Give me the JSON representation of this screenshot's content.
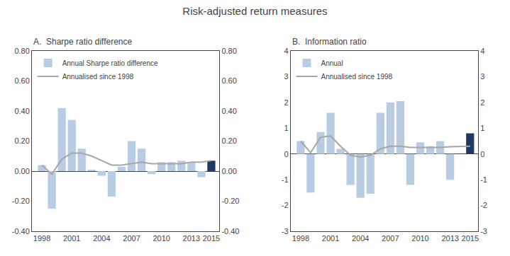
{
  "title": "Risk-adjusted return measures",
  "chart_data": [
    {
      "type": "bar",
      "title": "A.  Sharpe ratio difference",
      "x": [
        1998,
        1999,
        2000,
        2001,
        2002,
        2003,
        2004,
        2005,
        2006,
        2007,
        2008,
        2009,
        2010,
        2011,
        2012,
        2013,
        2014,
        2015
      ],
      "xlim": [
        1997.0,
        2015.8
      ],
      "xticks": [
        1998,
        2001,
        2004,
        2007,
        2010,
        2013,
        2015
      ],
      "ylim": [
        -0.4,
        0.8
      ],
      "yticks": [
        {
          "value": -0.4,
          "label": "-0.40"
        },
        {
          "value": -0.2,
          "label": "-0.20"
        },
        {
          "value": 0.0,
          "label": "0.00"
        },
        {
          "value": 0.2,
          "label": "0.20"
        },
        {
          "value": 0.4,
          "label": "0.40"
        },
        {
          "value": 0.6,
          "label": "0.60"
        },
        {
          "value": 0.8,
          "label": "0.80"
        }
      ],
      "y2lim": [
        -0.4,
        0.8
      ],
      "y2ticks": [
        {
          "value": -0.4,
          "label": "-0.40"
        },
        {
          "value": -0.2,
          "label": "-0.20"
        },
        {
          "value": 0.0,
          "label": "0.00"
        },
        {
          "value": 0.2,
          "label": "0.20"
        },
        {
          "value": 0.4,
          "label": "0.40"
        },
        {
          "value": 0.6,
          "label": "0.60"
        },
        {
          "value": 0.8,
          "label": "0.80"
        }
      ],
      "grid": false,
      "legend": "upper left",
      "series": [
        {
          "name": "Annual Sharpe ratio difference",
          "type": "bar",
          "values": [
            0.04,
            -0.25,
            0.42,
            0.34,
            0.15,
            0.01,
            -0.03,
            -0.17,
            0.03,
            0.2,
            0.15,
            -0.02,
            0.06,
            0.06,
            0.07,
            0.06,
            -0.04,
            0.07
          ],
          "colors": [
            "#b8cce4",
            "#b8cce4",
            "#b8cce4",
            "#b8cce4",
            "#b8cce4",
            "#b8cce4",
            "#b8cce4",
            "#b8cce4",
            "#b8cce4",
            "#b8cce4",
            "#b8cce4",
            "#b8cce4",
            "#b8cce4",
            "#b8cce4",
            "#b8cce4",
            "#b8cce4",
            "#b8cce4",
            "#1f3864"
          ]
        },
        {
          "name": "Annualised since 1998",
          "type": "line",
          "color": "#a6a6a6",
          "values": [
            0.04,
            -0.02,
            0.08,
            0.12,
            0.12,
            0.1,
            0.07,
            0.04,
            0.04,
            0.05,
            0.06,
            0.05,
            0.05,
            0.05,
            0.05,
            0.06,
            0.06,
            0.07
          ]
        }
      ]
    },
    {
      "type": "bar",
      "title": "B.  Information ratio",
      "x": [
        1998,
        1999,
        2000,
        2001,
        2002,
        2003,
        2004,
        2005,
        2006,
        2007,
        2008,
        2009,
        2010,
        2011,
        2012,
        2013,
        2014,
        2015
      ],
      "xlim": [
        1997.0,
        2015.8
      ],
      "xticks": [
        1998,
        2001,
        2004,
        2007,
        2010,
        2013,
        2015
      ],
      "ylim": [
        -3,
        4
      ],
      "yticks": [
        -3,
        -2,
        -1,
        0,
        1,
        2,
        3,
        4
      ],
      "y2lim": [
        -3,
        4
      ],
      "y2ticks": [
        -3,
        -2,
        -1,
        0,
        1,
        2,
        3,
        4
      ],
      "grid": false,
      "legend": "upper left",
      "series": [
        {
          "name": "Annual",
          "type": "bar",
          "values": [
            0.5,
            -1.5,
            0.85,
            1.6,
            0.2,
            -1.2,
            -1.7,
            -1.55,
            1.6,
            2.0,
            2.05,
            -1.2,
            0.45,
            0.3,
            0.5,
            -1.0,
            0.0,
            0.8
          ],
          "colors": [
            "#b8cce4",
            "#b8cce4",
            "#b8cce4",
            "#b8cce4",
            "#b8cce4",
            "#b8cce4",
            "#b8cce4",
            "#b8cce4",
            "#b8cce4",
            "#b8cce4",
            "#b8cce4",
            "#b8cce4",
            "#b8cce4",
            "#b8cce4",
            "#b8cce4",
            "#b8cce4",
            "#b8cce4",
            "#1f3864"
          ]
        },
        {
          "name": "Annualised since 1998",
          "type": "line",
          "color": "#a6a6a6",
          "values": [
            0.5,
            0.05,
            0.65,
            0.7,
            0.3,
            -0.05,
            -0.12,
            -0.05,
            0.2,
            0.3,
            0.3,
            0.25,
            0.25,
            0.25,
            0.25,
            0.28,
            0.28,
            0.3
          ]
        }
      ]
    }
  ]
}
